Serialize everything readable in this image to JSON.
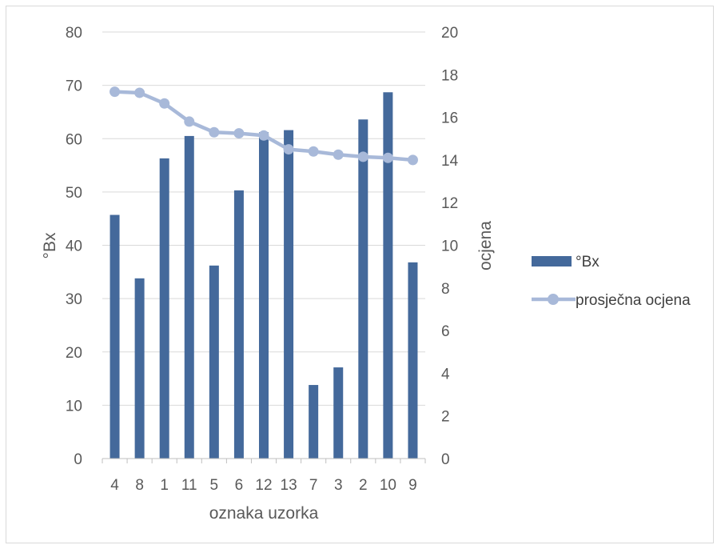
{
  "chart_data": {
    "type": "bar",
    "categories": [
      "4",
      "8",
      "1",
      "11",
      "5",
      "6",
      "12",
      "13",
      "7",
      "3",
      "2",
      "10",
      "9"
    ],
    "series": [
      {
        "name": "°Bx",
        "type": "bar",
        "axis": "left",
        "color": "#44699b",
        "values": [
          45.7,
          33.8,
          56.3,
          60.5,
          36.2,
          50.3,
          61.2,
          61.6,
          13.8,
          17.1,
          63.6,
          68.7,
          36.8
        ]
      },
      {
        "name": "prosječna ocjena",
        "type": "line",
        "axis": "right",
        "color": "#a8b9d9",
        "values": [
          17.2,
          17.15,
          16.65,
          15.8,
          15.3,
          15.25,
          15.15,
          14.5,
          14.4,
          14.25,
          14.15,
          14.1,
          14.0
        ]
      }
    ],
    "xlabel": "oznaka uzorka",
    "ylabel": "°Bx",
    "y2label": "ocjena",
    "ylim": [
      0,
      80
    ],
    "y2lim": [
      0,
      20
    ],
    "yticks": [
      "0",
      "10",
      "20",
      "30",
      "40",
      "50",
      "60",
      "70",
      "80"
    ],
    "y2ticks": [
      "0",
      "2",
      "4",
      "6",
      "8",
      "10",
      "12",
      "14",
      "16",
      "18",
      "20"
    ],
    "grid": true,
    "legend": "right"
  }
}
